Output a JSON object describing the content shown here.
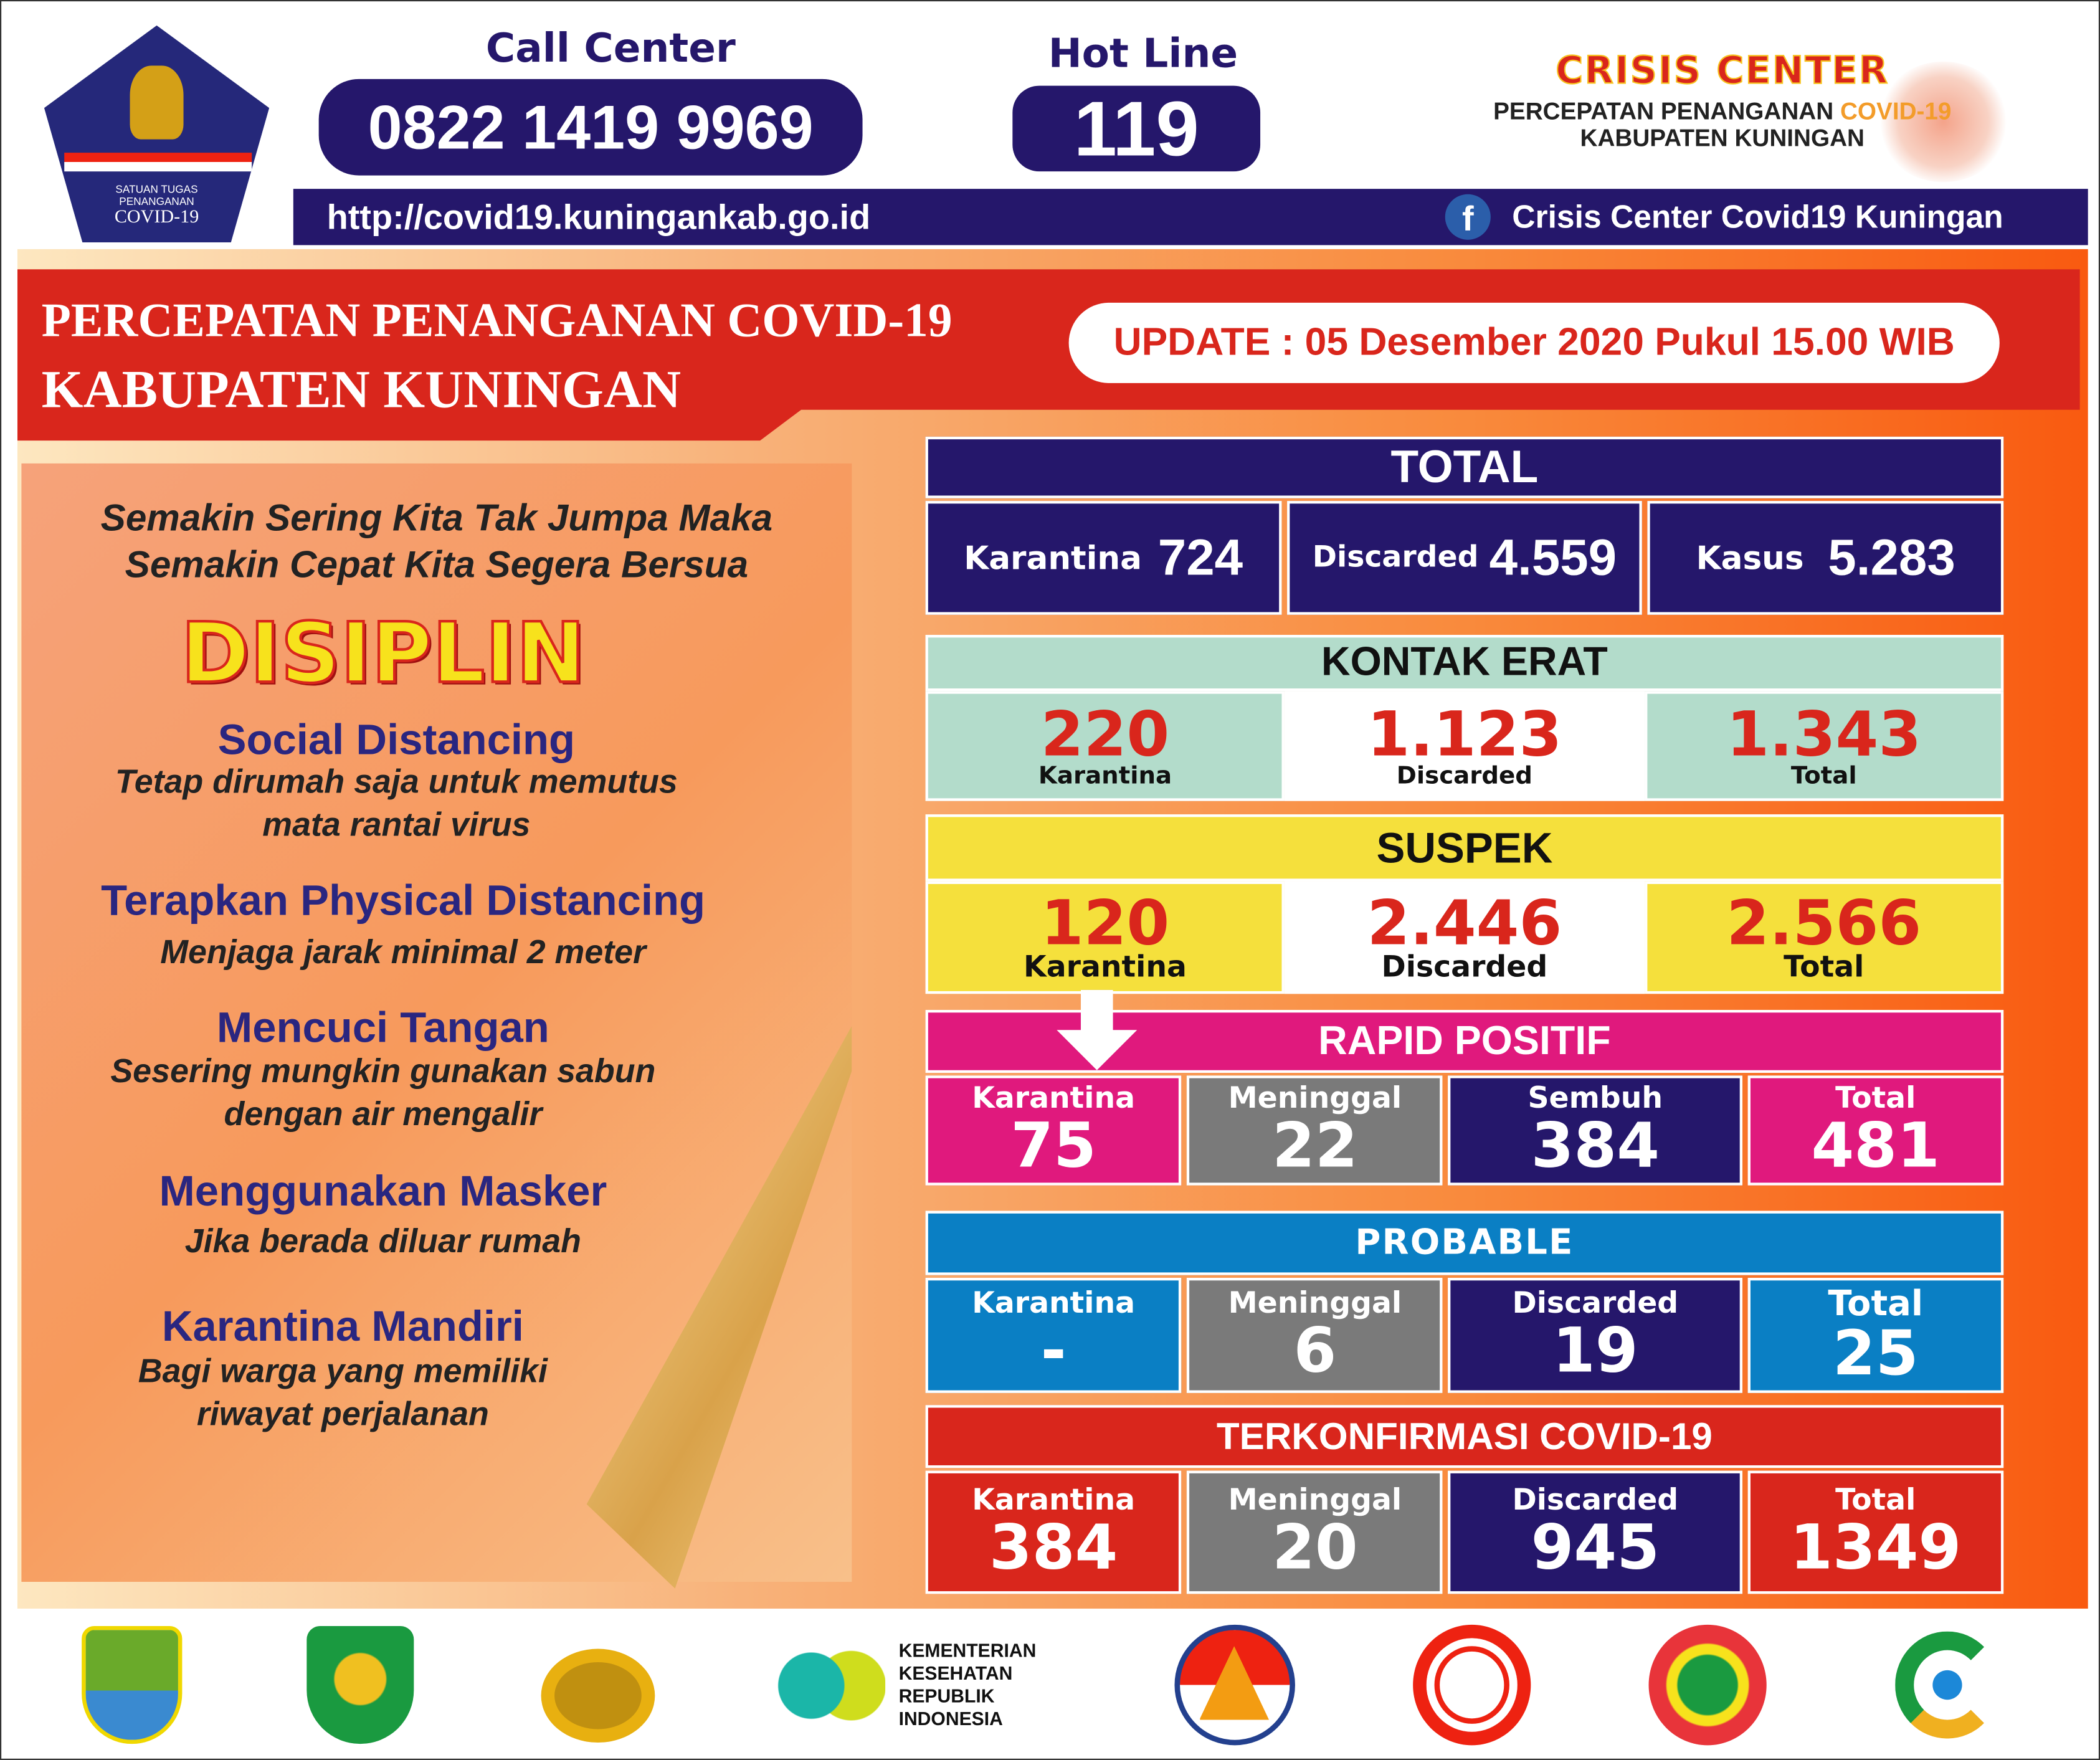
{
  "header": {
    "logo_text": [
      "SATUAN TUGAS",
      "PENANGANAN",
      "COVID-19"
    ],
    "call_center_label": "Call Center",
    "call_center_number": "0822 1419 9969",
    "hotline_label": "Hot Line",
    "hotline_number": "119",
    "crisis_title": "CRISIS CENTER",
    "crisis_sub1": "PERCEPATAN PENANGANAN",
    "crisis_sub1_accent": "COVID-19",
    "crisis_sub2": "KABUPATEN KUNINGAN",
    "website": "http://covid19.kuningankab.go.id",
    "facebook": "Crisis Center Covid19 Kuningan"
  },
  "banner": {
    "line1": "PERCEPATAN PENANGANAN COVID-19",
    "line2": "KABUPATEN KUNINGAN",
    "update": "UPDATE : 05 Desember 2020 Pukul 15.00 WIB"
  },
  "left": {
    "slogan1": "Semakin Sering Kita Tak Jumpa Maka",
    "slogan2": "Semakin Cepat Kita Segera Bersua",
    "disiplin": "DISIPLIN",
    "items": [
      {
        "title": "Social Distancing",
        "l1": "Tetap dirumah saja untuk memutus",
        "l2": "mata rantai virus"
      },
      {
        "title": "Terapkan Physical Distancing",
        "l1": "Menjaga jarak minimal 2 meter",
        "l2": ""
      },
      {
        "title": "Mencuci Tangan",
        "l1": "Sesering mungkin gunakan sabun",
        "l2": "dengan air mengalir"
      },
      {
        "title": "Menggunakan Masker",
        "l1": "Jika berada diluar rumah",
        "l2": ""
      },
      {
        "title": "Karantina Mandiri",
        "l1": "Bagi warga yang memiliki",
        "l2": "riwayat perjalanan"
      }
    ]
  },
  "total": {
    "title": "TOTAL",
    "cells": [
      {
        "label": "Karantina",
        "value": "724"
      },
      {
        "label": "Discarded",
        "value": "4.559"
      },
      {
        "label": "Kasus",
        "value": "5.283"
      }
    ]
  },
  "kontak_erat": {
    "title": "KONTAK ERAT",
    "cells": [
      {
        "label": "Karantina",
        "value": "220"
      },
      {
        "label": "Discarded",
        "value": "1.123"
      },
      {
        "label": "Total",
        "value": "1.343"
      }
    ]
  },
  "suspek": {
    "title": "SUSPEK",
    "cells": [
      {
        "label": "Karantina",
        "value": "120"
      },
      {
        "label": "Discarded",
        "value": "2.446"
      },
      {
        "label": "Total",
        "value": "2.566"
      }
    ]
  },
  "rapid": {
    "title": "RAPID POSITIF",
    "cells": [
      {
        "label": "Karantina",
        "value": "75"
      },
      {
        "label": "Meninggal",
        "value": "22"
      },
      {
        "label": "Sembuh",
        "value": "384"
      },
      {
        "label": "Total",
        "value": "481"
      }
    ]
  },
  "probable": {
    "title": "PROBABLE",
    "cells": [
      {
        "label": "Karantina",
        "value": "-"
      },
      {
        "label": "Meninggal",
        "value": "6"
      },
      {
        "label": "Discarded",
        "value": "19"
      },
      {
        "label": "Total",
        "value": "25"
      }
    ]
  },
  "terkonfirmasi": {
    "title": "TERKONFIRMASI COVID-19",
    "cells": [
      {
        "label": "Karantina",
        "value": "384"
      },
      {
        "label": "Meninggal",
        "value": "20"
      },
      {
        "label": "Discarded",
        "value": "945"
      },
      {
        "label": "Total",
        "value": "1349"
      }
    ]
  },
  "footer": {
    "kemenkes": [
      "KEMENTERIAN",
      "KESEHATAN",
      "REPUBLIK",
      "INDONESIA"
    ]
  },
  "colors": {
    "navy": "#25176b",
    "red": "#d9261c",
    "green": "#b3dccb",
    "yellow": "#f5e03c",
    "magenta": "#e0197d",
    "gray": "#7a7a7a",
    "blue": "#0a7fc4"
  }
}
